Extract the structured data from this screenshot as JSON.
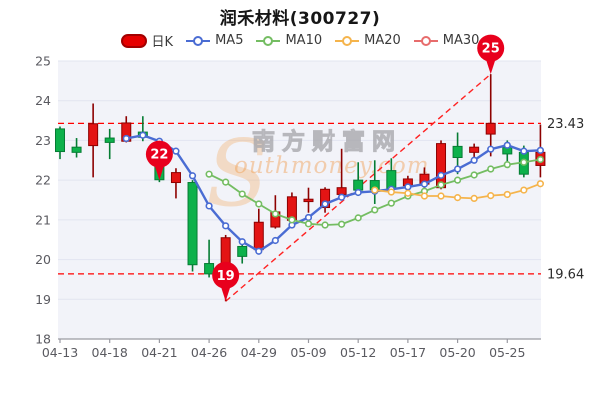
{
  "page": {
    "title": "润禾材料(300727)"
  },
  "legend": {
    "items": [
      {
        "label": "日K",
        "color": "#e60000",
        "border": "#a30000",
        "type": "pill"
      },
      {
        "label": "MA5",
        "color": "#4a6cd3",
        "type": "line"
      },
      {
        "label": "MA10",
        "color": "#74bd62",
        "type": "line"
      },
      {
        "label": "MA20",
        "color": "#f5b44c",
        "type": "line"
      },
      {
        "label": "MA30",
        "color": "#e76c6c",
        "type": "line"
      }
    ]
  },
  "watermark": {
    "initial": "S",
    "cn": "南方财富网",
    "en": "outhmoney.com"
  },
  "chart_data": {
    "type": "candlestick",
    "title": "润禾材料(300727)",
    "y_axis": {
      "min": 18,
      "max": 25,
      "tick_labels": [
        "25",
        "24",
        "23",
        "22",
        "21",
        "20",
        "19",
        "18"
      ],
      "grid": true
    },
    "x_tick_labels": [
      "04-13",
      "04-18",
      "04-21",
      "04-26",
      "04-29",
      "05-09",
      "05-12",
      "05-17",
      "05-20",
      "05-25"
    ],
    "candles_per_tick": 3,
    "candles_ohlc": [
      [
        23.29,
        23.35,
        22.53,
        22.72
      ],
      [
        22.83,
        23.06,
        22.57,
        22.7
      ],
      [
        22.87,
        23.93,
        22.07,
        23.42
      ],
      [
        23.06,
        23.29,
        22.53,
        22.95
      ],
      [
        22.98,
        23.61,
        22.95,
        23.44
      ],
      [
        23.21,
        23.61,
        22.98,
        23.08
      ],
      [
        22.6,
        22.85,
        21.95,
        22.01
      ],
      [
        21.94,
        22.3,
        21.54,
        22.19
      ],
      [
        21.94,
        22.0,
        19.7,
        19.87
      ],
      [
        19.9,
        20.5,
        19.55,
        19.64
      ],
      [
        19.85,
        20.62,
        18.95,
        20.55
      ],
      [
        20.33,
        20.5,
        19.9,
        20.08
      ],
      [
        20.25,
        21.28,
        20.21,
        20.94
      ],
      [
        20.82,
        21.62,
        20.78,
        21.2
      ],
      [
        20.99,
        21.69,
        20.95,
        21.58
      ],
      [
        21.46,
        21.81,
        21.18,
        21.52
      ],
      [
        21.31,
        21.82,
        21.18,
        21.77
      ],
      [
        21.64,
        22.79,
        21.56,
        21.81
      ],
      [
        22.0,
        22.45,
        21.6,
        21.75
      ],
      [
        21.99,
        22.5,
        21.4,
        21.76
      ],
      [
        22.24,
        22.55,
        21.7,
        21.78
      ],
      [
        21.86,
        22.11,
        21.73,
        22.03
      ],
      [
        21.9,
        22.32,
        21.77,
        22.15
      ],
      [
        21.81,
        23.0,
        21.77,
        22.92
      ],
      [
        22.85,
        23.2,
        22.15,
        22.57
      ],
      [
        22.7,
        22.92,
        22.49,
        22.83
      ],
      [
        23.16,
        24.67,
        22.6,
        23.43
      ],
      [
        22.83,
        23.0,
        22.45,
        22.66
      ],
      [
        22.7,
        22.87,
        22.07,
        22.15
      ],
      [
        22.37,
        23.4,
        22.07,
        22.7
      ]
    ],
    "series": [
      {
        "name": "MA5",
        "color": "#4a6cd3",
        "width": 2.4,
        "start_index": 4,
        "values": [
          23.05,
          23.13,
          22.98,
          22.73,
          22.11,
          21.35,
          20.85,
          20.45,
          20.21,
          20.48,
          20.87,
          21.06,
          21.4,
          21.57,
          21.69,
          21.72,
          21.77,
          21.83,
          21.9,
          22.12,
          22.28,
          22.5,
          22.78,
          22.88,
          22.73,
          22.75
        ]
      },
      {
        "name": "MA10",
        "color": "#74bd62",
        "width": 1.8,
        "start_index": 9,
        "values": [
          22.15,
          21.95,
          21.65,
          21.4,
          21.15,
          21.0,
          20.9,
          20.87,
          20.89,
          21.05,
          21.25,
          21.42,
          21.6,
          21.72,
          21.88,
          22.0,
          22.13,
          22.28,
          22.39,
          22.45,
          22.52
        ]
      },
      {
        "name": "MA20",
        "color": "#f5b44c",
        "width": 1.8,
        "start_index": 19,
        "values": [
          21.75,
          21.7,
          21.67,
          21.6,
          21.6,
          21.56,
          21.54,
          21.61,
          21.64,
          21.75,
          21.91
        ]
      },
      {
        "name": "MA30",
        "color": "#e76c6c",
        "width": 1.8,
        "start_index": 29,
        "values": []
      }
    ],
    "ref_lines": [
      {
        "value": 23.43,
        "label": "23.43"
      },
      {
        "value": 19.64,
        "label": "19.64"
      }
    ],
    "markers": [
      {
        "label": "22",
        "candle_index": 6,
        "price": 22.0
      },
      {
        "label": "19",
        "candle_index": 10,
        "price": 18.95
      },
      {
        "label": "25",
        "candle_index": 26,
        "price": 24.67
      }
    ],
    "trend_line": {
      "from_index": 10,
      "from_price": 18.95,
      "to_index": 26,
      "to_price": 24.67
    },
    "colors": {
      "up_fill": "#e31414",
      "up_border": "#8d0000",
      "down_fill": "#0db14b",
      "down_border": "#067c34",
      "balloon": "#e8001c",
      "ref_line": "#ff0000",
      "trend_line": "#ff2222",
      "plot_bg": "#f2f3f9",
      "grid": "#e2e5f0",
      "axis": "#9a9aa2",
      "axis_text": "#5a5a60",
      "ref_label_text": "#2b2b2b"
    }
  }
}
